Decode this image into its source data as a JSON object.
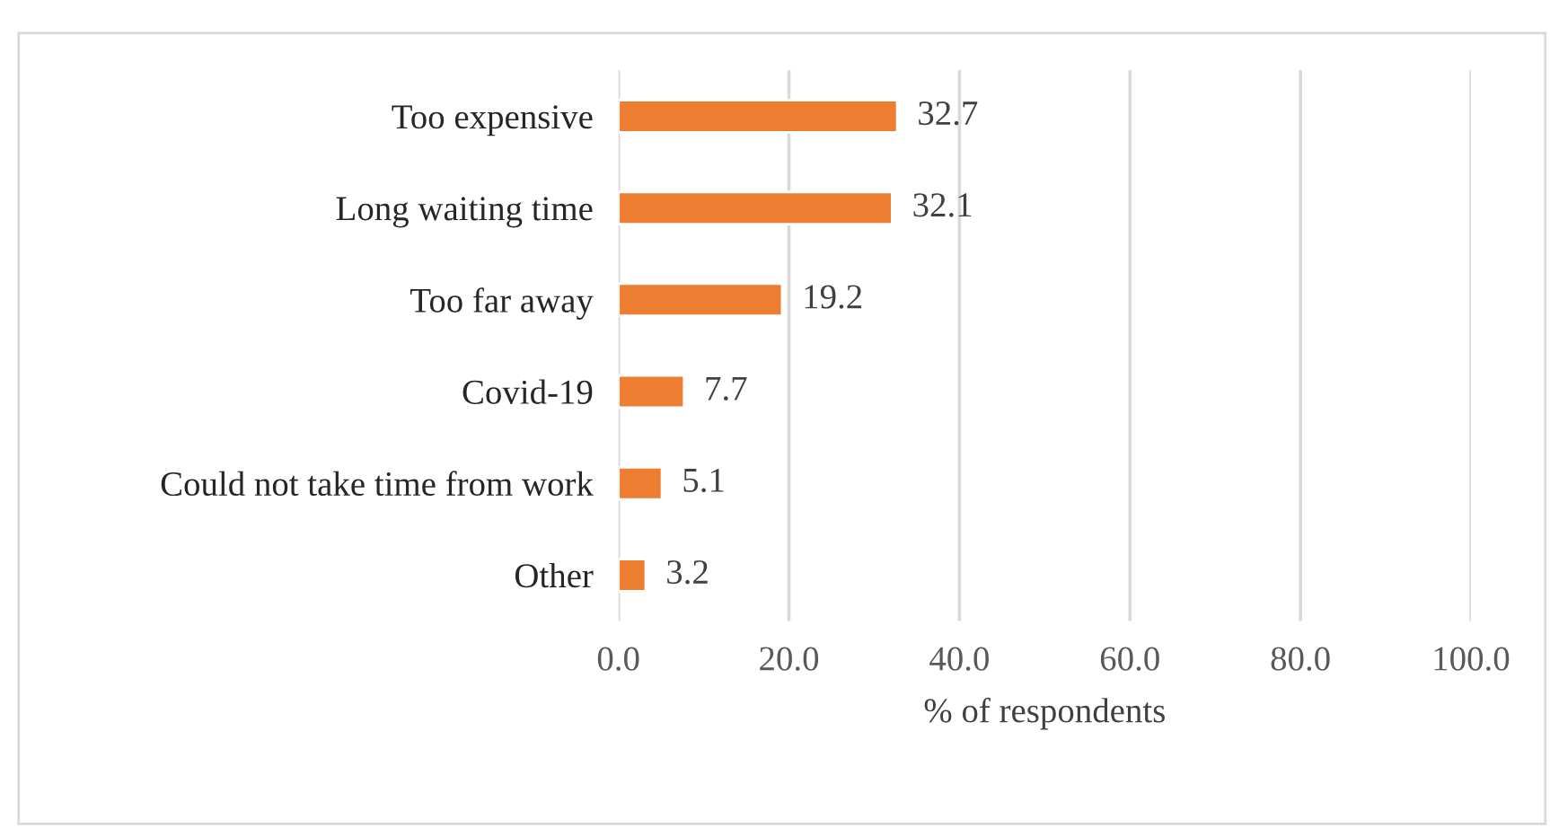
{
  "chart_data": {
    "type": "bar",
    "orientation": "horizontal",
    "xlabel": "% of respondents",
    "categories": [
      "Too expensive",
      "Long waiting time",
      "Too far away",
      "Covid-19",
      "Could not take time from work",
      "Other"
    ],
    "values": [
      32.7,
      32.1,
      19.2,
      7.7,
      5.1,
      3.2
    ],
    "color": "#ed7d31",
    "xlim": [
      0,
      100
    ],
    "xticks": [
      {
        "value": 0,
        "label": "0.0"
      },
      {
        "value": 20,
        "label": "20.0"
      },
      {
        "value": 40,
        "label": "40.0"
      },
      {
        "value": 60,
        "label": "60.0"
      },
      {
        "value": 80,
        "label": "80.0"
      },
      {
        "value": 100,
        "label": "100.0"
      }
    ],
    "grid": "x",
    "data_labels": true
  }
}
